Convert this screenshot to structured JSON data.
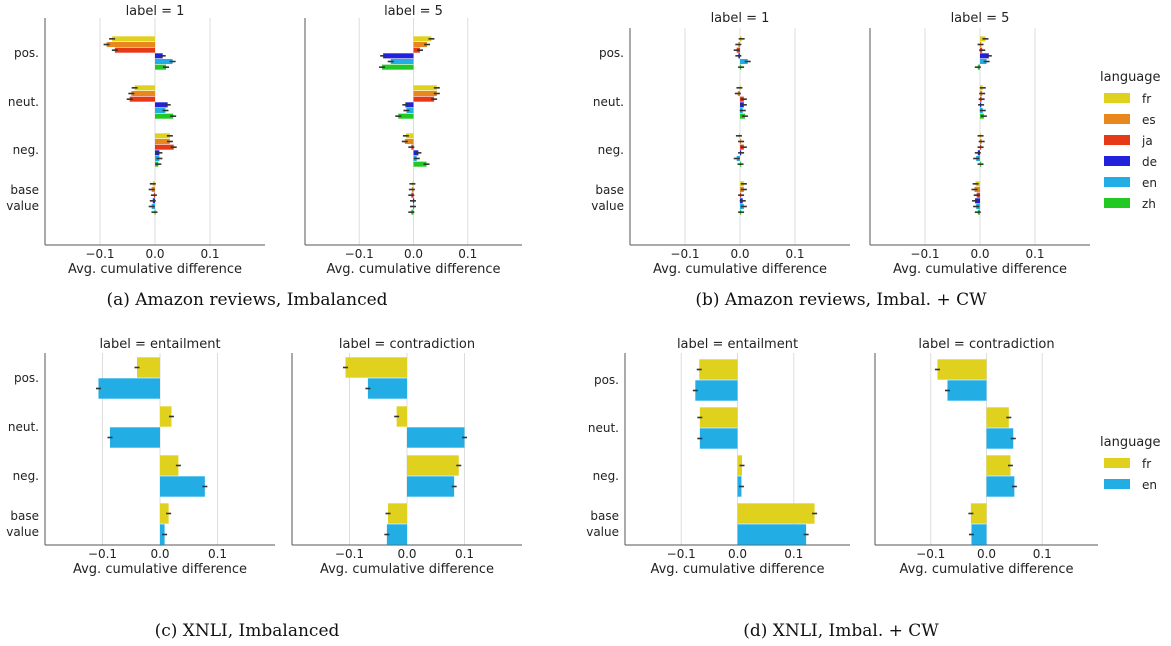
{
  "colors": {
    "fr": "#e0d11e",
    "es": "#e8871e",
    "ja": "#e63a17",
    "de": "#2222dd",
    "en": "#22aee5",
    "zh": "#22c922",
    "errorbar": "#333333",
    "grid": "#dddddd",
    "axis": "#555555"
  },
  "captions": {
    "a": "(a) Amazon reviews, Imbalanced",
    "b": "(b) Amazon reviews, Imbal. + CW",
    "c": "(c) XNLI, Imbalanced",
    "d": "(d) XNLI, Imbal. + CW"
  },
  "legends": [
    {
      "title": "language",
      "items": [
        "fr",
        "es",
        "ja",
        "de",
        "en",
        "zh"
      ]
    },
    {
      "title": "language",
      "items": [
        "fr",
        "en"
      ]
    }
  ],
  "chart_data": [
    {
      "id": "a-1",
      "type": "bar",
      "orientation": "horizontal",
      "title": "label = 1",
      "xlabel": "Avg. cumulative difference",
      "xlim": [
        -0.2,
        0.2
      ],
      "xticks": [
        "−0.1",
        "0.0",
        "0.1"
      ],
      "xtick_values": [
        -0.1,
        0.0,
        0.1
      ],
      "categories": [
        "pos.",
        "neut.",
        "neg.",
        "base\nvalue"
      ],
      "series": [
        {
          "name": "fr",
          "values": [
            -0.078,
            -0.037,
            0.027,
            -0.004
          ]
        },
        {
          "name": "es",
          "values": [
            -0.088,
            -0.043,
            0.027,
            -0.006
          ]
        },
        {
          "name": "ja",
          "values": [
            -0.073,
            -0.046,
            0.034,
            -0.002
          ]
        },
        {
          "name": "de",
          "values": [
            0.014,
            0.023,
            0.008,
            -0.004
          ]
        },
        {
          "name": "en",
          "values": [
            0.032,
            0.019,
            0.008,
            -0.006
          ]
        },
        {
          "name": "zh",
          "values": [
            0.02,
            0.033,
            0.006,
            -0.001
          ]
        }
      ]
    },
    {
      "id": "a-5",
      "type": "bar",
      "orientation": "horizontal",
      "title": "label = 5",
      "xlabel": "Avg. cumulative difference",
      "xlim": [
        -0.2,
        0.2
      ],
      "xticks": [
        "−0.1",
        "0.0",
        "0.1"
      ],
      "xtick_values": [
        -0.1,
        0.0,
        0.1
      ],
      "categories": [
        "pos.",
        "neut.",
        "neg.",
        "base\nvalue"
      ],
      "series": [
        {
          "name": "fr",
          "values": [
            0.033,
            0.043,
            -0.014,
            -0.002
          ]
        },
        {
          "name": "es",
          "values": [
            0.025,
            0.043,
            -0.016,
            -0.003
          ]
        },
        {
          "name": "ja",
          "values": [
            0.012,
            0.038,
            -0.004,
            -0.004
          ]
        },
        {
          "name": "de",
          "values": [
            -0.056,
            -0.015,
            0.009,
            -0.001
          ]
        },
        {
          "name": "en",
          "values": [
            -0.042,
            -0.013,
            0.006,
            -0.001
          ]
        },
        {
          "name": "zh",
          "values": [
            -0.058,
            -0.028,
            0.024,
            -0.004
          ]
        }
      ]
    },
    {
      "id": "b-1",
      "type": "bar",
      "orientation": "horizontal",
      "title": "label = 1",
      "xlabel": "Avg. cumulative difference",
      "xlim": [
        -0.2,
        0.2
      ],
      "xticks": [
        "−0.1",
        "0.0",
        "0.1"
      ],
      "xtick_values": [
        -0.1,
        0.0,
        0.1
      ],
      "categories": [
        "pos.",
        "neut.",
        "neg.",
        "base\nvalue"
      ],
      "series": [
        {
          "name": "fr",
          "values": [
            0.003,
            -0.001,
            -0.002,
            0.007
          ]
        },
        {
          "name": "es",
          "values": [
            -0.003,
            -0.004,
            0.002,
            0.007
          ]
        },
        {
          "name": "ja",
          "values": [
            -0.006,
            0.007,
            0.007,
            0.002
          ]
        },
        {
          "name": "de",
          "values": [
            -0.003,
            0.007,
            0.002,
            0.005
          ]
        },
        {
          "name": "en",
          "values": [
            0.014,
            0.005,
            -0.006,
            0.007
          ]
        },
        {
          "name": "zh",
          "values": [
            0.002,
            0.009,
            0.001,
            0.002
          ]
        }
      ]
    },
    {
      "id": "b-5",
      "type": "bar",
      "orientation": "horizontal",
      "title": "label = 5",
      "xlabel": "Avg. cumulative difference",
      "xlim": [
        -0.2,
        0.2
      ],
      "xticks": [
        "−0.1",
        "0.0",
        "0.1"
      ],
      "xtick_values": [
        -0.1,
        0.0,
        0.1
      ],
      "categories": [
        "pos.",
        "neut.",
        "neg.",
        "base\nvalue"
      ],
      "series": [
        {
          "name": "fr",
          "values": [
            0.01,
            0.005,
            0.001,
            -0.008
          ]
        },
        {
          "name": "es",
          "values": [
            0.001,
            0.004,
            0.003,
            -0.01
          ]
        },
        {
          "name": "ja",
          "values": [
            0.004,
            0.003,
            0.001,
            -0.006
          ]
        },
        {
          "name": "de",
          "values": [
            0.016,
            0.002,
            -0.004,
            -0.009
          ]
        },
        {
          "name": "en",
          "values": [
            0.012,
            0.005,
            -0.007,
            -0.007
          ]
        },
        {
          "name": "zh",
          "values": [
            -0.004,
            0.007,
            0.001,
            -0.004
          ]
        }
      ]
    },
    {
      "id": "c-ent",
      "type": "bar",
      "orientation": "horizontal",
      "title": "label = entailment",
      "xlabel": "Avg. cumulative difference",
      "xlim": [
        -0.2,
        0.2
      ],
      "xticks": [
        "−0.1",
        "0.0",
        "0.1"
      ],
      "xtick_values": [
        -0.1,
        0.0,
        0.1
      ],
      "categories": [
        "pos.",
        "neut.",
        "neg.",
        "base\nvalue"
      ],
      "series": [
        {
          "name": "fr",
          "values": [
            -0.04,
            0.02,
            0.032,
            0.015
          ]
        },
        {
          "name": "en",
          "values": [
            -0.107,
            -0.087,
            0.078,
            0.008
          ]
        }
      ]
    },
    {
      "id": "c-con",
      "type": "bar",
      "orientation": "horizontal",
      "title": "label = contradiction",
      "xlabel": "Avg. cumulative difference",
      "xlim": [
        -0.2,
        0.2
      ],
      "xticks": [
        "−0.1",
        "0.0",
        "0.1"
      ],
      "xtick_values": [
        -0.1,
        0.0,
        0.1
      ],
      "categories": [
        "pos.",
        "neut.",
        "neg.",
        "base\nvalue"
      ],
      "series": [
        {
          "name": "fr",
          "values": [
            -0.107,
            -0.018,
            0.09,
            -0.033
          ]
        },
        {
          "name": "en",
          "values": [
            -0.068,
            0.1,
            0.082,
            -0.035
          ]
        }
      ]
    },
    {
      "id": "d-ent",
      "type": "bar",
      "orientation": "horizontal",
      "title": "label = entailment",
      "xlabel": "Avg. cumulative difference",
      "xlim": [
        -0.2,
        0.2
      ],
      "xticks": [
        "−0.1",
        "0.0",
        "0.1"
      ],
      "xtick_values": [
        -0.1,
        0.0,
        0.1
      ],
      "categories": [
        "pos.",
        "neut.",
        "neg.",
        "base\nvalue"
      ],
      "series": [
        {
          "name": "fr",
          "values": [
            -0.068,
            -0.067,
            0.008,
            0.137
          ]
        },
        {
          "name": "en",
          "values": [
            -0.075,
            -0.067,
            0.007,
            0.122
          ]
        }
      ]
    },
    {
      "id": "d-con",
      "type": "bar",
      "orientation": "horizontal",
      "title": "label = contradiction",
      "xlabel": "Avg. cumulative difference",
      "xlim": [
        -0.2,
        0.2
      ],
      "xticks": [
        "−0.1",
        "0.0",
        "0.1"
      ],
      "xtick_values": [
        -0.1,
        0.0,
        0.1
      ],
      "categories": [
        "pos.",
        "neut.",
        "neg.",
        "base\nvalue"
      ],
      "series": [
        {
          "name": "fr",
          "values": [
            -0.088,
            0.04,
            0.043,
            -0.028
          ]
        },
        {
          "name": "en",
          "values": [
            -0.07,
            0.048,
            0.05,
            -0.027
          ]
        }
      ]
    }
  ]
}
